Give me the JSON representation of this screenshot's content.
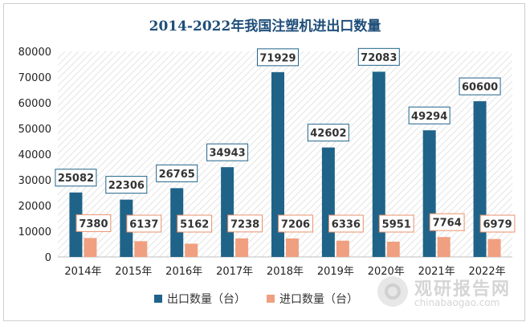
{
  "chart_data": {
    "type": "bar",
    "title": "2014-2022年我国注塑机进出口数量",
    "categories": [
      "2014年",
      "2015年",
      "2016年",
      "2017年",
      "2018年",
      "2019年",
      "2020年",
      "2021年",
      "2022年"
    ],
    "series": [
      {
        "name": "出口数量（台）",
        "color": "#1f6389",
        "values": [
          25082,
          22306,
          26765,
          34943,
          71929,
          42602,
          72083,
          49294,
          60600
        ]
      },
      {
        "name": "进口数量（台）",
        "color": "#f0a080",
        "values": [
          7380,
          6137,
          5162,
          7238,
          7206,
          6336,
          5951,
          7764,
          6979
        ]
      }
    ],
    "ylim": [
      0,
      80000
    ],
    "yticks": [
      0,
      10000,
      20000,
      30000,
      40000,
      50000,
      60000,
      70000,
      80000
    ],
    "grid": false,
    "legend": "bottom",
    "data_labels": true
  },
  "watermark": {
    "name": "观研报告网",
    "url": "chinabaogao.com"
  }
}
